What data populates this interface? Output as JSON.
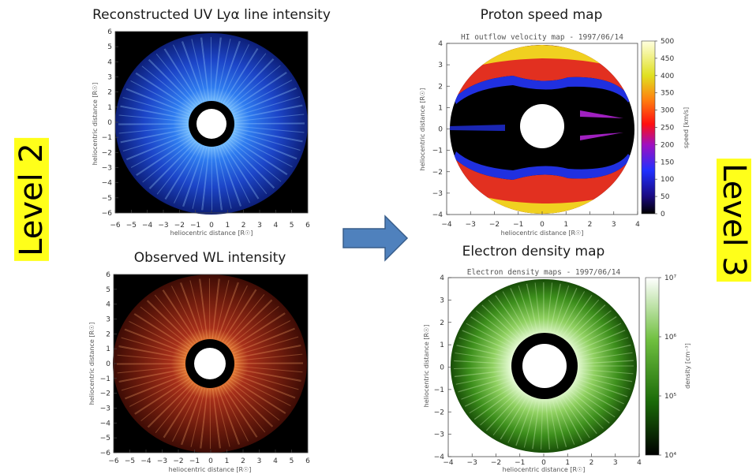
{
  "levels": {
    "left": "Level 2",
    "right": "Level 3"
  },
  "panels": {
    "uv": {
      "title": "Reconstructed UV Lyα line intensity",
      "xlabel": "heliocentric distance [R☉]",
      "ylabel": "heliocentric distance [R☉]",
      "ticks": [
        -6,
        -5,
        -4,
        -3,
        -2,
        -1,
        0,
        1,
        2,
        3,
        4,
        5,
        6
      ]
    },
    "wl": {
      "title": "Observed WL intensity",
      "xlabel": "heliocentric distance [R☉]",
      "ylabel": "heliocentric distance [R☉]",
      "ticks": [
        -6,
        -5,
        -4,
        -3,
        -2,
        -1,
        0,
        1,
        2,
        3,
        4,
        5,
        6
      ]
    },
    "proton": {
      "title": "Proton speed map",
      "inner_title": "HI outflow velocity map - 1997/06/14",
      "xlabel": "heliocentric distance [R☉]",
      "ylabel": "heliocentric distance [R☉]",
      "ticks": [
        -4,
        -3,
        -2,
        -1,
        0,
        1,
        2,
        3,
        4
      ],
      "colorbar": {
        "label": "speed [km/s]",
        "ticks": [
          0,
          50,
          100,
          150,
          200,
          250,
          300,
          350,
          400,
          450,
          500
        ]
      }
    },
    "electron": {
      "title": "Electron density map",
      "inner_title": "Electron density maps - 1997/06/14",
      "xlabel": "heliocentric distance [R☉]",
      "ylabel": "heliocentric distance [R☉]",
      "ticks": [
        -4,
        -3,
        -2,
        -1,
        0,
        1,
        2,
        3,
        4
      ],
      "colorbar": {
        "label": "density [cm⁻³]",
        "ticks": [
          "10⁴",
          "10⁵",
          "10⁶",
          "10⁷"
        ]
      }
    }
  },
  "colors": {
    "uv_glow": "#4fa8ff",
    "uv_mid": "#1d4fd8",
    "uv_edge": "#0a1a6a",
    "wl_core": "#ffd9a0",
    "wl_mid": "#c0401a",
    "wl_edge": "#4a0e05",
    "en_core": "#ffffff",
    "en_mid": "#5ec030",
    "en_edge": "#0d3a05",
    "arrow_fill": "#4f81bd",
    "arrow_stroke": "#385d8a",
    "level_bg": "#ffff1a"
  }
}
